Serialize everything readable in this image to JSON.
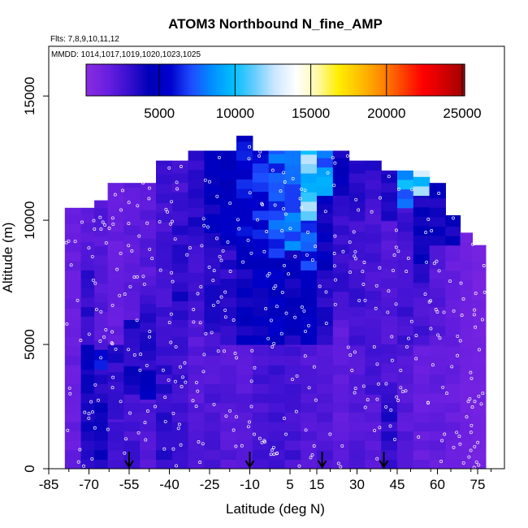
{
  "chart_data": {
    "type": "heatmap",
    "title": "ATOM3 Northbound N_fine_AMP",
    "flights_note": "Flts: 7,8,9,10,11,12",
    "dates_note": "MMDD: 1014,1017,1019,1020,1023,1025",
    "xlabel": "Latitude (deg N)",
    "ylabel": "Altitude (m)",
    "xlim": [
      -85,
      85
    ],
    "ylim": [
      0,
      17000
    ],
    "x_ticks": [
      -85,
      -70,
      -55,
      -40,
      -25,
      -10,
      5,
      15,
      30,
      45,
      60,
      75
    ],
    "x_tick_labels": [
      "-85",
      "-70",
      "-55",
      "-40",
      "-25",
      "-10",
      "5",
      "15",
      "30",
      "45",
      "60",
      "75"
    ],
    "y_ticks": [
      0,
      5000,
      10000,
      15000
    ],
    "y_tick_labels": [
      "0",
      "5000",
      "10000",
      "15000"
    ],
    "colorbar": {
      "range": [
        0,
        25000
      ],
      "ticks": [
        5000,
        10000,
        15000,
        20000,
        25000
      ],
      "tick_labels": [
        "5000",
        "10000",
        "15000",
        "20000",
        "25000"
      ],
      "colors": [
        "#8a2be2",
        "#6b1fe0",
        "#3a10d0",
        "#0000b8",
        "#0000cd",
        "#1e4cff",
        "#0090ff",
        "#00bfff",
        "#66ccff",
        "#cfe8ff",
        "#ffffff",
        "#fff9a8",
        "#ffee00",
        "#ffc000",
        "#ff8c00",
        "#ff4500",
        "#ff0000",
        "#d40000",
        "#a00000"
      ]
    },
    "arrows_latitude": [
      -55,
      -10,
      17,
      40
    ],
    "grid": false,
    "legend_placement": "top (horizontal colorbar inside plot)",
    "profile_columns": [
      {
        "lat": -76,
        "bands": [
          [
            0,
            10500,
            1500
          ]
        ]
      },
      {
        "lat": -70,
        "bands": [
          [
            0,
            4000,
            3500
          ],
          [
            4000,
            5000,
            4000
          ],
          [
            5000,
            8000,
            3000
          ],
          [
            8000,
            10500,
            2000
          ]
        ]
      },
      {
        "lat": -66,
        "bands": [
          [
            0,
            4000,
            3500
          ],
          [
            4000,
            4800,
            5200
          ],
          [
            4800,
            10800,
            2000
          ]
        ]
      },
      {
        "lat": -60,
        "bands": [
          [
            0,
            2000,
            2500
          ],
          [
            2000,
            5000,
            3200
          ],
          [
            5000,
            11500,
            1500
          ]
        ]
      },
      {
        "lat": -54,
        "bands": [
          [
            0,
            3000,
            2500
          ],
          [
            3000,
            6000,
            3500
          ],
          [
            6000,
            11500,
            1800
          ]
        ]
      },
      {
        "lat": -48,
        "bands": [
          [
            0,
            2800,
            2200
          ],
          [
            2800,
            4000,
            4500
          ],
          [
            4000,
            7000,
            3200
          ],
          [
            7000,
            11500,
            2000
          ]
        ]
      },
      {
        "lat": -42,
        "bands": [
          [
            0,
            5000,
            3000
          ],
          [
            5000,
            12400,
            2500
          ]
        ]
      },
      {
        "lat": -36,
        "bands": [
          [
            0,
            6000,
            2800
          ],
          [
            6000,
            10000,
            3300
          ],
          [
            10000,
            12400,
            2600
          ]
        ]
      },
      {
        "lat": -30,
        "bands": [
          [
            0,
            6000,
            2000
          ],
          [
            6000,
            9000,
            2600
          ],
          [
            9000,
            12800,
            3200
          ]
        ]
      },
      {
        "lat": -24,
        "bands": [
          [
            0,
            5500,
            2200
          ],
          [
            5500,
            9500,
            3500
          ],
          [
            9500,
            12800,
            4200
          ]
        ]
      },
      {
        "lat": -18,
        "bands": [
          [
            0,
            5000,
            2000
          ],
          [
            5000,
            9000,
            3200
          ],
          [
            9000,
            12800,
            4800
          ]
        ]
      },
      {
        "lat": -12,
        "bands": [
          [
            0,
            5000,
            2000
          ],
          [
            5000,
            9000,
            4000
          ],
          [
            9000,
            13400,
            5500
          ]
        ]
      },
      {
        "lat": -6,
        "bands": [
          [
            0,
            5000,
            2400
          ],
          [
            5000,
            8500,
            4500
          ],
          [
            8500,
            12800,
            6000
          ]
        ]
      },
      {
        "lat": 0,
        "bands": [
          [
            0,
            5000,
            2500
          ],
          [
            5000,
            8500,
            4800
          ],
          [
            8500,
            12800,
            7000
          ]
        ]
      },
      {
        "lat": 6,
        "bands": [
          [
            0,
            5000,
            2500
          ],
          [
            5000,
            8800,
            4000
          ],
          [
            8800,
            12800,
            8000
          ]
        ]
      },
      {
        "lat": 12,
        "bands": [
          [
            0,
            5000,
            2000
          ],
          [
            5000,
            8000,
            4500
          ],
          [
            8000,
            10000,
            6500
          ],
          [
            10000,
            12800,
            10500
          ]
        ]
      },
      {
        "lat": 18,
        "bands": [
          [
            0,
            5000,
            2200
          ],
          [
            5000,
            8000,
            3200
          ],
          [
            8000,
            11000,
            4200
          ],
          [
            11000,
            12800,
            8000
          ]
        ]
      },
      {
        "lat": 24,
        "bands": [
          [
            0,
            6000,
            1800
          ],
          [
            6000,
            11000,
            2800
          ],
          [
            11000,
            12800,
            4200
          ]
        ]
      },
      {
        "lat": 30,
        "bands": [
          [
            0,
            5000,
            2000
          ],
          [
            5000,
            10000,
            2600
          ],
          [
            10000,
            12400,
            3200
          ]
        ]
      },
      {
        "lat": 36,
        "bands": [
          [
            0,
            3000,
            2000
          ],
          [
            3000,
            10500,
            2500
          ],
          [
            10500,
            12400,
            3000
          ]
        ]
      },
      {
        "lat": 42,
        "bands": [
          [
            0,
            3500,
            3200
          ],
          [
            3500,
            10000,
            2200
          ],
          [
            10000,
            12000,
            3500
          ]
        ]
      },
      {
        "lat": 48,
        "bands": [
          [
            0,
            5000,
            2000
          ],
          [
            5000,
            10500,
            2600
          ],
          [
            10500,
            12000,
            8500
          ]
        ]
      },
      {
        "lat": 54,
        "bands": [
          [
            0,
            5000,
            1600
          ],
          [
            5000,
            7500,
            2400
          ],
          [
            7500,
            11000,
            3800
          ],
          [
            11000,
            12000,
            11000
          ]
        ]
      },
      {
        "lat": 60,
        "bands": [
          [
            0,
            5000,
            1600
          ],
          [
            5000,
            9000,
            2000
          ],
          [
            9000,
            11500,
            4000
          ]
        ]
      },
      {
        "lat": 66,
        "bands": [
          [
            0,
            9000,
            1500
          ],
          [
            9000,
            10200,
            3800
          ]
        ]
      },
      {
        "lat": 71,
        "bands": [
          [
            0,
            9500,
            1200
          ]
        ]
      },
      {
        "lat": 75,
        "bands": [
          [
            0,
            9000,
            1000
          ]
        ]
      }
    ]
  }
}
